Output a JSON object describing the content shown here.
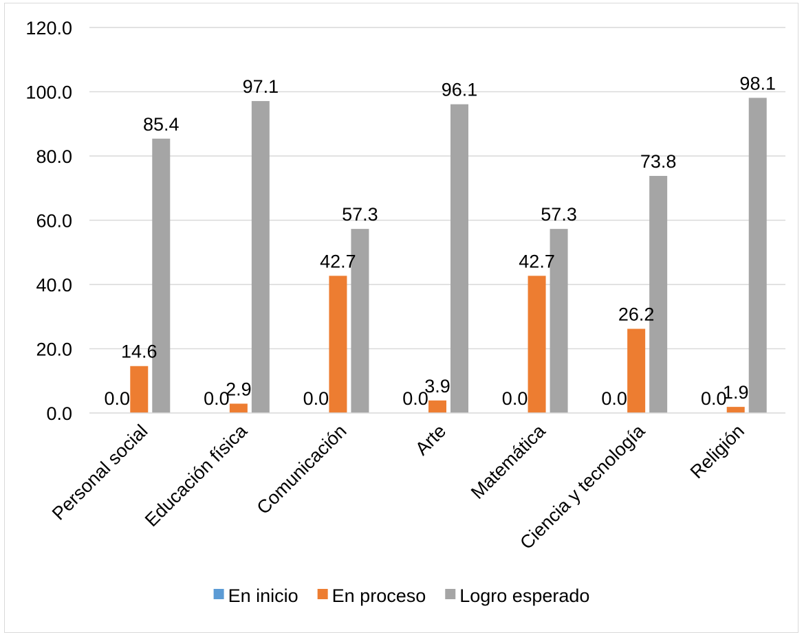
{
  "chart_data": {
    "type": "bar",
    "categories": [
      "Personal social",
      "Educación física",
      "Comunicación",
      "Arte",
      "Matemática",
      "Ciencia y tecnología",
      "Religión"
    ],
    "series": [
      {
        "name": "En inicio",
        "color": "#5b9bd5",
        "values": [
          0.0,
          0.0,
          0.0,
          0.0,
          0.0,
          0.0,
          0.0
        ],
        "labels": [
          "0.0",
          "0.0",
          "0.0",
          "0.0",
          "0.0",
          "0.0",
          "0.0"
        ]
      },
      {
        "name": "En proceso",
        "color": "#ed7d31",
        "values": [
          14.6,
          2.9,
          42.7,
          3.9,
          42.7,
          26.2,
          1.9
        ],
        "labels": [
          "14.6",
          "2.9",
          "42.7",
          "3.9",
          "42.7",
          "26.2",
          "1.9"
        ]
      },
      {
        "name": "Logro esperado",
        "color": "#a5a5a5",
        "values": [
          85.4,
          97.1,
          57.3,
          96.1,
          57.3,
          73.8,
          98.1
        ],
        "labels": [
          "85.4",
          "97.1",
          "57.3",
          "96.1",
          "57.3",
          "73.8",
          "98.1"
        ]
      }
    ],
    "ylim": [
      0,
      120
    ],
    "yticks": [
      "0.0",
      "20.0",
      "40.0",
      "60.0",
      "80.0",
      "100.0",
      "120.0"
    ],
    "grid": true,
    "legend_position": "bottom",
    "gridline_color": "#d9d9d9"
  }
}
